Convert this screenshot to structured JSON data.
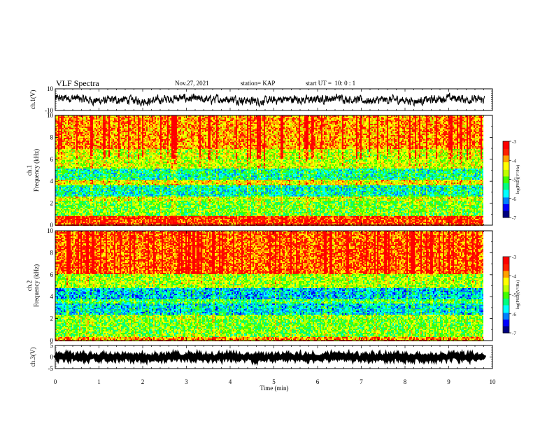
{
  "header": {
    "title": "VLF Spectra",
    "date": "Nov.27, 2021",
    "station": "station= KAP",
    "start": "start UT =  10: 0 : 1"
  },
  "chart_data": [
    {
      "type": "line",
      "panel": "ch1-waveform",
      "ylabel": "ch.1(V)",
      "ylim": [
        -10,
        10
      ],
      "yticks": [
        "10",
        "-10"
      ],
      "xlim": [
        0,
        10
      ],
      "trace_end_min": 9.82,
      "baseline_v": 0,
      "noise_amplitude_v": 3.5
    },
    {
      "type": "heatmap",
      "panel": "ch1-spectrogram",
      "ylabel": "ch.1\nFrequency (kHz)",
      "ylim": [
        0,
        10
      ],
      "yticks": [
        "0",
        "2",
        "4",
        "6",
        "8",
        "10"
      ],
      "xlim": [
        0,
        10
      ],
      "data_end_min": 9.82,
      "colorbar": {
        "label": "log(PSD)(V²/Hz)",
        "range": [
          -7,
          -3
        ],
        "ticks": [
          "-3",
          "-4",
          "-5",
          "-6",
          "-7"
        ]
      },
      "band_profile_khz": [
        {
          "f0": 0.0,
          "f1": 0.8,
          "level": -3.6
        },
        {
          "f0": 0.8,
          "f1": 2.2,
          "level": -5.0
        },
        {
          "f0": 2.2,
          "f1": 2.6,
          "level": -4.6
        },
        {
          "f0": 2.6,
          "f1": 3.6,
          "level": -5.6
        },
        {
          "f0": 3.6,
          "f1": 4.2,
          "level": -4.4
        },
        {
          "f0": 4.2,
          "f1": 5.2,
          "level": -5.5
        },
        {
          "f0": 5.2,
          "f1": 5.8,
          "level": -4.6
        },
        {
          "f0": 5.8,
          "f1": 7.0,
          "level": -4.7
        },
        {
          "f0": 7.0,
          "f1": 10.0,
          "level": -4.1
        }
      ]
    },
    {
      "type": "heatmap",
      "panel": "ch2-spectrogram",
      "ylabel": "ch.2\nFrequency (kHz)",
      "ylim": [
        0,
        10
      ],
      "yticks": [
        "0",
        "2",
        "4",
        "6",
        "8",
        "10"
      ],
      "xlim": [
        0,
        10
      ],
      "data_end_min": 9.82,
      "colorbar": {
        "label": "log(PSD)(V²/Hz)",
        "range": [
          -7,
          -3
        ],
        "ticks": [
          "-3",
          "-4",
          "-5",
          "-6",
          "-7"
        ]
      },
      "band_profile_khz": [
        {
          "f0": 0.0,
          "f1": 0.3,
          "level": -4.0
        },
        {
          "f0": 0.3,
          "f1": 2.0,
          "level": -5.0
        },
        {
          "f0": 2.0,
          "f1": 2.4,
          "level": -4.9
        },
        {
          "f0": 2.4,
          "f1": 3.4,
          "level": -5.8
        },
        {
          "f0": 3.4,
          "f1": 3.8,
          "level": -5.2
        },
        {
          "f0": 3.8,
          "f1": 4.8,
          "level": -5.9
        },
        {
          "f0": 4.8,
          "f1": 6.0,
          "level": -4.8
        },
        {
          "f0": 6.0,
          "f1": 10.0,
          "level": -3.9
        }
      ]
    },
    {
      "type": "line",
      "panel": "ch3-waveform",
      "ylabel": "ch.3(V)",
      "ylim": [
        -5,
        5
      ],
      "yticks": [
        "5",
        "0",
        "-5"
      ],
      "xlim": [
        0,
        10
      ],
      "trace_end_min": 9.82,
      "baseline_v": 0,
      "noise_amplitude_v": 0.6,
      "xlabel": "Time (min)",
      "xticks": [
        "0",
        "1",
        "2",
        "3",
        "4",
        "5",
        "6",
        "7",
        "8",
        "9",
        "10"
      ]
    }
  ],
  "colors": {
    "scale": [
      "#000080",
      "#0000ff",
      "#0080ff",
      "#00ffff",
      "#00ff80",
      "#40ff00",
      "#c0ff00",
      "#ffff00",
      "#ffa000",
      "#ff2000",
      "#ff0000",
      "#ffffff"
    ]
  }
}
